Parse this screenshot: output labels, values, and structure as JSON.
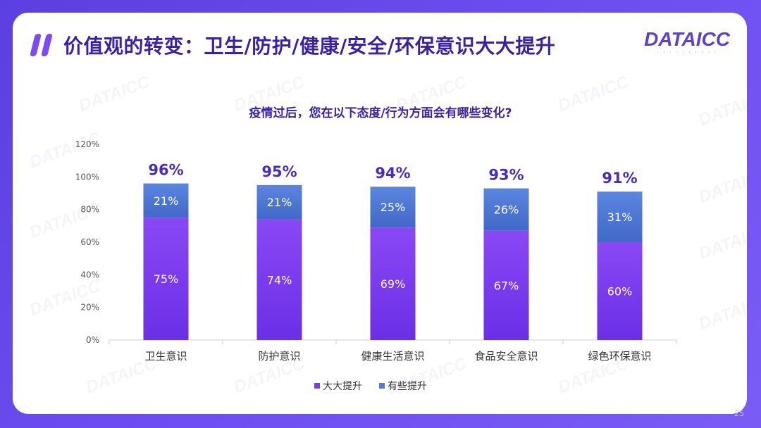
{
  "header": {
    "title": "价值观的转变：卫生/防护/健康/安全/环保意识大大提升",
    "logo_text": "DATAICC"
  },
  "question": "疫情过后，您在以下态度/行为方面会有哪些变化?",
  "page_number": "25",
  "colors": {
    "series_big": "#7a3cf0",
    "series_some": "#4f79d8",
    "title": "#3a1fa8",
    "background": "#6a4bee"
  },
  "chart_data": {
    "type": "bar",
    "stacked": true,
    "categories": [
      "卫生意识",
      "防护意识",
      "健康生活意识",
      "食品安全意识",
      "绿色环保意识"
    ],
    "series": [
      {
        "name": "大大提升",
        "values": [
          75,
          74,
          69,
          67,
          60
        ],
        "labels": [
          "75%",
          "74%",
          "69%",
          "67%",
          "60%"
        ]
      },
      {
        "name": "有些提升",
        "values": [
          21,
          21,
          25,
          26,
          31
        ],
        "labels": [
          "21%",
          "21%",
          "25%",
          "26%",
          "31%"
        ]
      }
    ],
    "totals": [
      96,
      95,
      94,
      93,
      91
    ],
    "total_labels": [
      "96%",
      "95%",
      "94%",
      "93%",
      "91%"
    ],
    "ylim": [
      0,
      120
    ],
    "yticks": [
      0,
      20,
      40,
      60,
      80,
      100,
      120
    ],
    "ytick_labels": [
      "0%",
      "20%",
      "40%",
      "60%",
      "80%",
      "100%",
      "120%"
    ],
    "legend_position": "bottom",
    "grid": false
  }
}
